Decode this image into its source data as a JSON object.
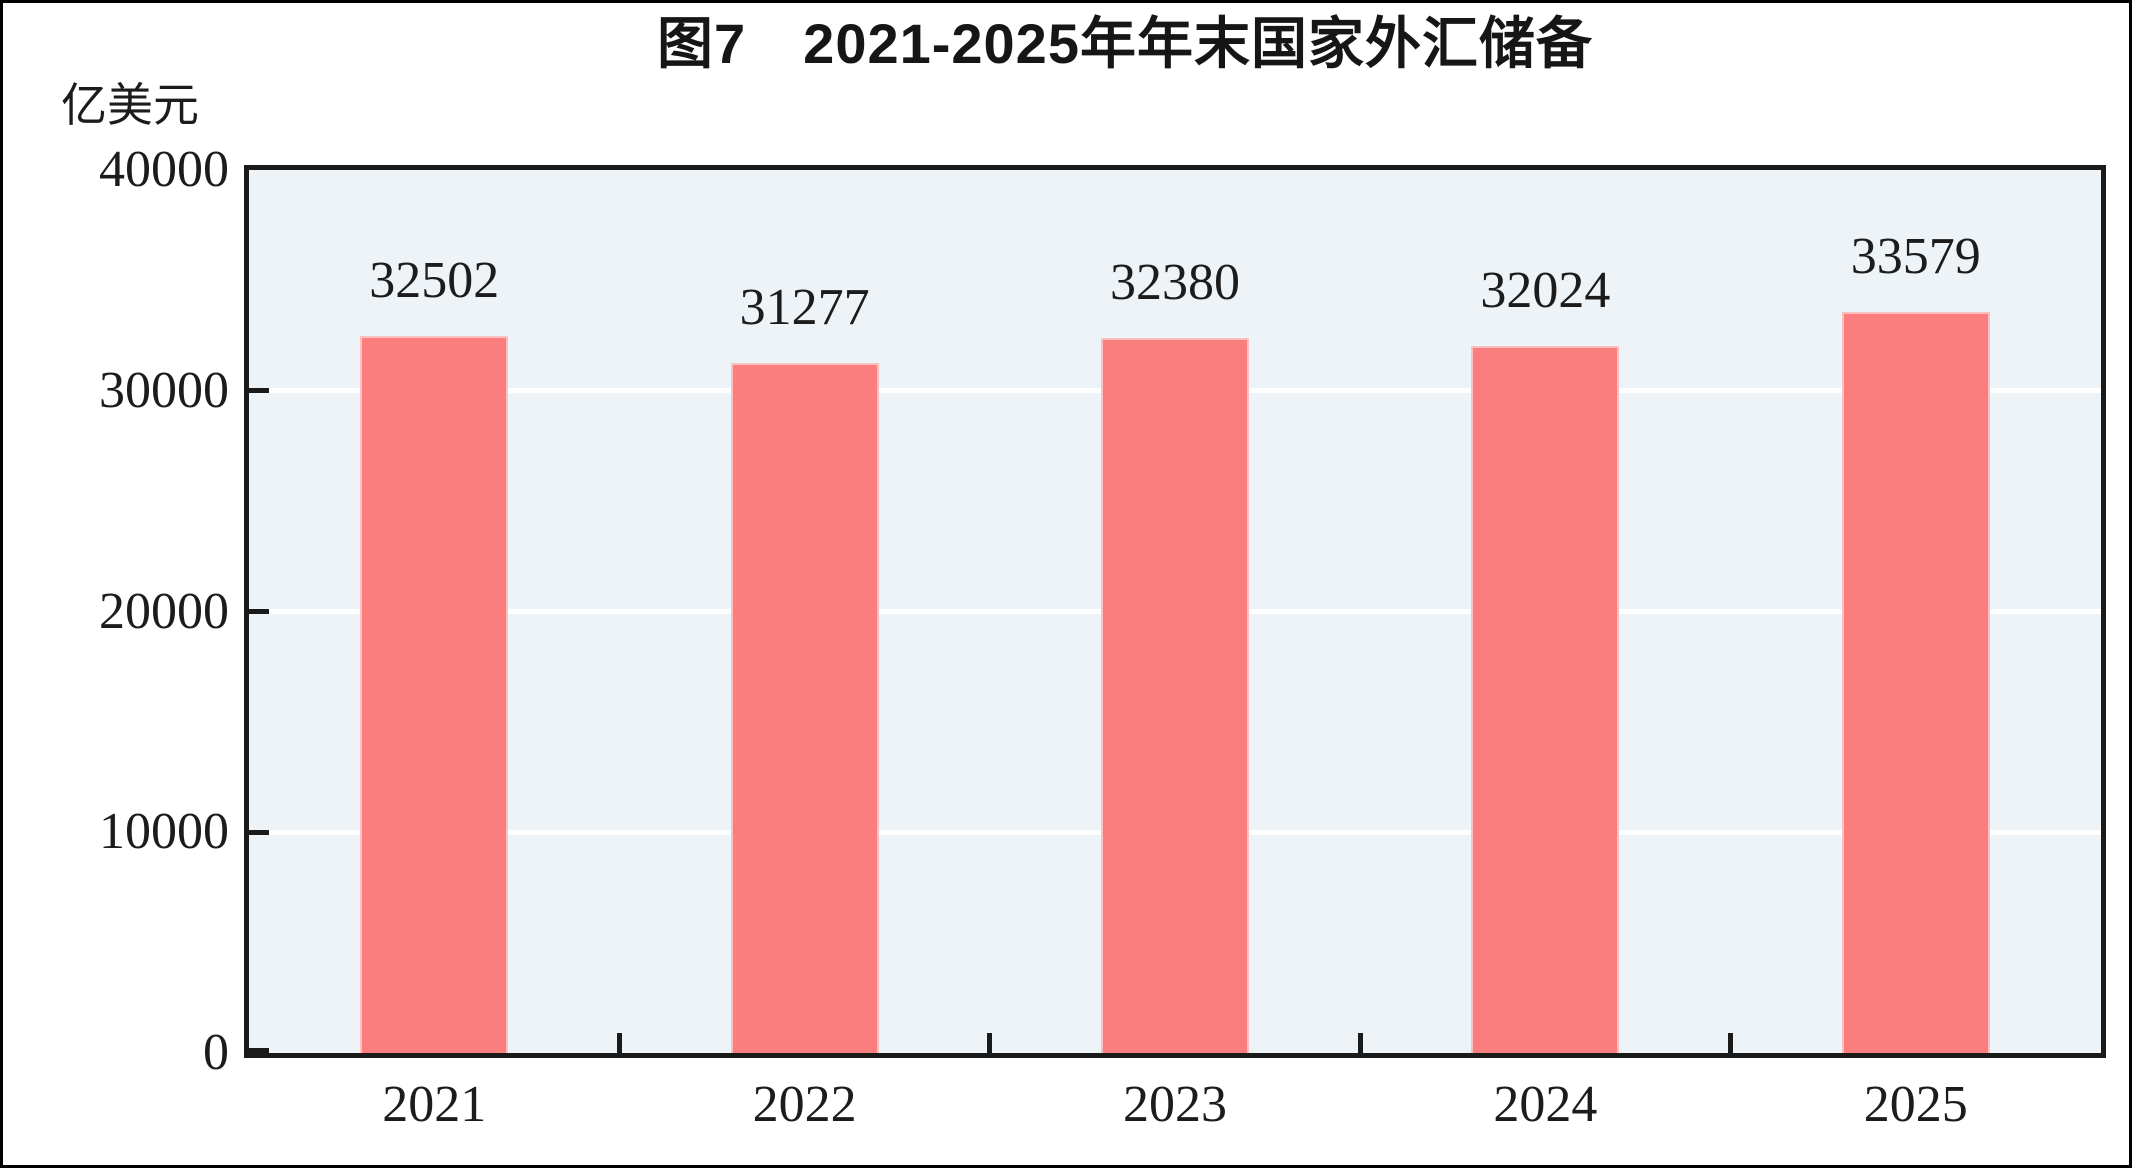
{
  "chart_data": {
    "type": "bar",
    "title": "图7　2021-2025年年末国家外汇储备",
    "unit_label": "亿美元",
    "categories": [
      "2021",
      "2022",
      "2023",
      "2024",
      "2025"
    ],
    "values": [
      32502,
      31277,
      32380,
      32024,
      33579
    ],
    "data_labels": [
      "32502",
      "31277",
      "32380",
      "32024",
      "33579"
    ],
    "ylim": [
      0,
      40000
    ],
    "yticks": [
      0,
      10000,
      20000,
      30000,
      40000
    ],
    "ytick_labels": [
      "0",
      "10000",
      "20000",
      "30000",
      "40000"
    ],
    "grid": true,
    "legend": "none",
    "colors": {
      "bar_fill": "#FB7E7E",
      "plot_background": "#EDF3F7",
      "gridline": "#FFFFFF",
      "axis": "#1A1A1A",
      "text": "#1C1C1C",
      "page_border": "#000000",
      "page_background": "#FFFFFF"
    }
  }
}
